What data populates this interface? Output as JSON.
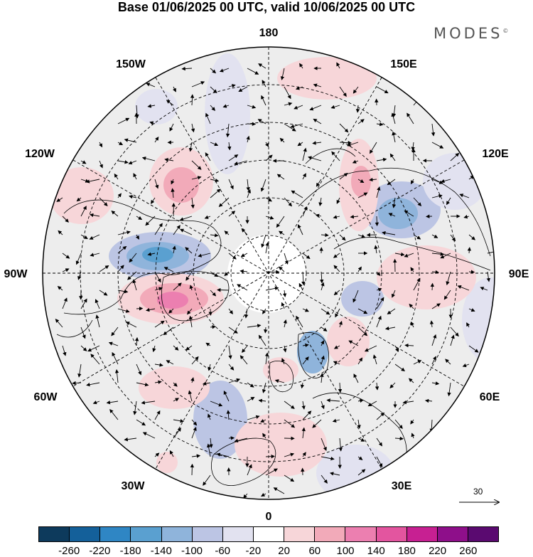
{
  "title": "Base 01/06/2025 00 UTC, valid 10/06/2025 00 UTC",
  "brand": "MODES",
  "brand_mark": "©",
  "longitude_labels": {
    "lon_180": "180",
    "lon_150W": "150W",
    "lon_150E": "150E",
    "lon_120W": "120W",
    "lon_120E": "120E",
    "lon_90W": "90W",
    "lon_90E": "90E",
    "lon_60W": "60W",
    "lon_60E": "60E",
    "lon_30W": "30W",
    "lon_30E": "30E",
    "lon_0": "0"
  },
  "reference_vector": {
    "label": "30"
  },
  "colorbar": {
    "colors": [
      "#0d3a5c",
      "#14609a",
      "#2f86c4",
      "#5aa0d0",
      "#8fb4db",
      "#bcc5e4",
      "#e2e2f0",
      "#ffffff",
      "#f7d6d9",
      "#f2aab9",
      "#ec7fb0",
      "#e3559f",
      "#c72092",
      "#8e0f8a",
      "#5a0a70"
    ],
    "ticks": [
      "-260",
      "-220",
      "-180",
      "-140",
      "-100",
      "-60",
      "-20",
      "20",
      "60",
      "100",
      "140",
      "180",
      "220",
      "260"
    ]
  },
  "colors": {
    "land_background": "#ededed",
    "coastline": "#000000",
    "graticule": "#000000",
    "positive_anomaly": "#f2aab9",
    "negative_anomaly": "#8fb4db"
  }
}
